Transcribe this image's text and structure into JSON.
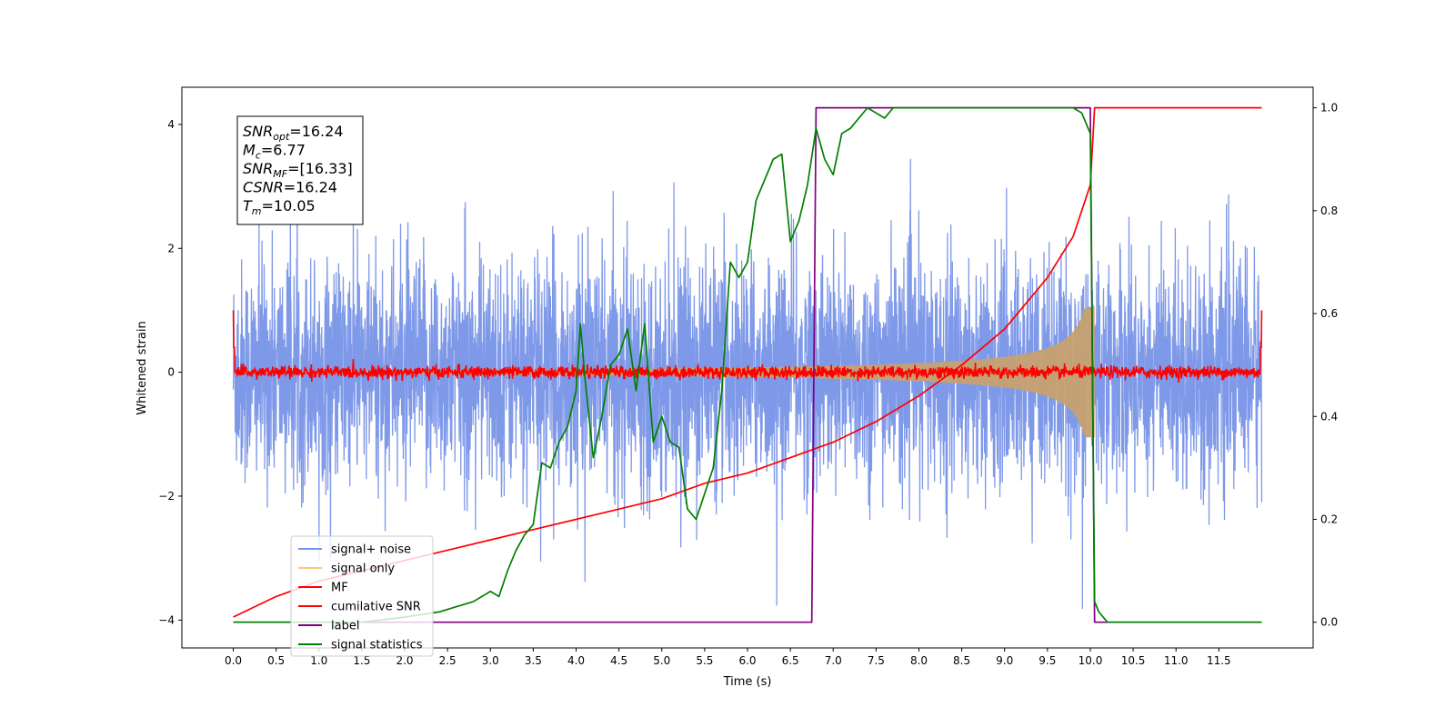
{
  "chart_data": {
    "type": "line",
    "xlabel": "Time (s)",
    "ylabel_left": "Whitened strain",
    "ylabel_right": "",
    "xlim": [
      -0.6,
      12.6
    ],
    "ylim_left": [
      -4.45,
      4.6
    ],
    "ylim_right": [
      -0.05,
      1.04
    ],
    "xticks": [
      "0.0",
      "0.5",
      "1.0",
      "1.5",
      "2.0",
      "2.5",
      "3.0",
      "3.5",
      "4.0",
      "4.5",
      "5.0",
      "5.5",
      "6.0",
      "6.5",
      "7.0",
      "7.5",
      "8.0",
      "8.5",
      "9.0",
      "9.5",
      "10.0",
      "10.5",
      "11.0",
      "11.5"
    ],
    "yticks_left": [
      "−4",
      "−2",
      "0",
      "2",
      "4"
    ],
    "yticks_right": [
      "0.0",
      "0.2",
      "0.4",
      "0.6",
      "0.8",
      "1.0"
    ],
    "grid": false,
    "annotation": {
      "lines": [
        {
          "sym": "SNR",
          "sub": "opt",
          "value": "=16.24"
        },
        {
          "sym": "M",
          "sub": "c",
          "value": "=6.77"
        },
        {
          "sym": "SNR",
          "sub": "MF",
          "value": "=[16.33]"
        },
        {
          "sym": "CSNR",
          "sub": "",
          "value": "=16.24"
        },
        {
          "sym": "T",
          "sub": "m",
          "value": "=10.05"
        }
      ]
    },
    "legend": {
      "placement": "lower-left",
      "entries": [
        {
          "label": "signal+ noise",
          "color": "#7893e8"
        },
        {
          "label": "signal only",
          "color": "#f5cb7a"
        },
        {
          "label": "MF",
          "color": "#ff0000"
        },
        {
          "label": "cumilative SNR",
          "color": "#ff0000"
        },
        {
          "label": "label",
          "color": "#800080"
        },
        {
          "label": "signal statistics",
          "color": "#008000"
        }
      ]
    },
    "series": [
      {
        "name": "signal+ noise",
        "axis": "left",
        "kind": "noise",
        "x_range": [
          0.0,
          12.0
        ],
        "amplitude_sd": 0.9,
        "color": "#7893e8"
      },
      {
        "name": "signal only",
        "axis": "left",
        "kind": "chirp_envelope",
        "x_range": [
          0.0,
          10.05
        ],
        "peak": 1.05,
        "color": "#c8a070"
      },
      {
        "name": "MF",
        "axis": "left",
        "kind": "noise_small",
        "x_range": [
          0.0,
          12.0
        ],
        "amplitude_sd": 0.05,
        "edge_value": 1.0,
        "color": "#ff0000"
      },
      {
        "name": "cumilative SNR",
        "axis": "right",
        "x": [
          0.0,
          0.5,
          1.0,
          1.5,
          2.0,
          2.5,
          3.0,
          3.5,
          4.0,
          4.5,
          5.0,
          5.5,
          6.0,
          6.5,
          7.0,
          7.5,
          8.0,
          8.5,
          9.0,
          9.5,
          9.8,
          10.0,
          10.05,
          12.0
        ],
        "values": [
          0.01,
          0.05,
          0.08,
          0.1,
          0.12,
          0.14,
          0.16,
          0.18,
          0.2,
          0.22,
          0.24,
          0.27,
          0.29,
          0.32,
          0.35,
          0.39,
          0.44,
          0.5,
          0.57,
          0.67,
          0.75,
          0.85,
          1.0,
          1.0
        ],
        "color": "#ff0000"
      },
      {
        "name": "label",
        "axis": "right",
        "x": [
          0.0,
          6.75,
          6.8,
          10.0,
          10.05,
          12.0
        ],
        "values": [
          0.0,
          0.0,
          1.0,
          1.0,
          0.0,
          0.0
        ],
        "color": "#800080"
      },
      {
        "name": "signal statistics",
        "axis": "right",
        "x": [
          0.0,
          0.5,
          1.0,
          1.5,
          2.0,
          2.4,
          2.6,
          2.8,
          3.0,
          3.1,
          3.2,
          3.3,
          3.4,
          3.5,
          3.6,
          3.7,
          3.8,
          3.9,
          4.0,
          4.05,
          4.1,
          4.2,
          4.3,
          4.4,
          4.5,
          4.6,
          4.7,
          4.8,
          4.9,
          5.0,
          5.1,
          5.2,
          5.3,
          5.4,
          5.5,
          5.6,
          5.7,
          5.8,
          5.9,
          6.0,
          6.1,
          6.2,
          6.3,
          6.4,
          6.5,
          6.6,
          6.7,
          6.8,
          6.9,
          7.0,
          7.1,
          7.2,
          7.3,
          7.4,
          7.5,
          7.6,
          7.7,
          7.8,
          8.0,
          8.5,
          9.0,
          9.5,
          9.8,
          9.9,
          10.0,
          10.05,
          10.1,
          10.2,
          11.0,
          12.0
        ],
        "values": [
          0.0,
          0.0,
          0.0,
          0.0,
          0.01,
          0.02,
          0.03,
          0.04,
          0.06,
          0.05,
          0.1,
          0.14,
          0.17,
          0.19,
          0.31,
          0.3,
          0.35,
          0.38,
          0.45,
          0.58,
          0.48,
          0.32,
          0.4,
          0.5,
          0.52,
          0.57,
          0.45,
          0.58,
          0.35,
          0.4,
          0.35,
          0.34,
          0.22,
          0.2,
          0.25,
          0.3,
          0.45,
          0.7,
          0.67,
          0.7,
          0.82,
          0.86,
          0.9,
          0.91,
          0.74,
          0.78,
          0.85,
          0.96,
          0.9,
          0.87,
          0.95,
          0.96,
          0.98,
          1.0,
          0.99,
          0.98,
          1.0,
          1.0,
          1.0,
          1.0,
          1.0,
          1.0,
          1.0,
          0.99,
          0.95,
          0.04,
          0.02,
          0.0,
          0.0,
          0.0
        ],
        "color": "#008000"
      }
    ]
  }
}
